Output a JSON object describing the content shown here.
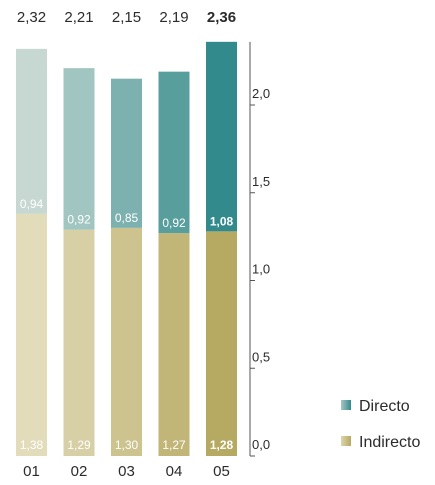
{
  "chart_data": {
    "type": "bar",
    "stacked": true,
    "categories": [
      "01",
      "02",
      "03",
      "04",
      "05"
    ],
    "series": [
      {
        "name": "Indirecto",
        "values": [
          1.38,
          1.29,
          1.3,
          1.27,
          1.28
        ],
        "labels": [
          "1,38",
          "1,29",
          "1,30",
          "1,27",
          "1,28"
        ]
      },
      {
        "name": "Directo",
        "values": [
          0.94,
          0.92,
          0.85,
          0.92,
          1.08
        ],
        "labels": [
          "0,94",
          "0,92",
          "0,85",
          "0,92",
          "1,08"
        ]
      }
    ],
    "totals": [
      2.32,
      2.21,
      2.15,
      2.19,
      2.36
    ],
    "total_labels": [
      "2,32",
      "2,21",
      "2,15",
      "2,19",
      "2,36"
    ],
    "highlight_index": 4,
    "ylim": [
      0,
      2.36
    ],
    "yticks": [
      0.0,
      0.5,
      1.0,
      1.5,
      2.0
    ],
    "ytick_labels": [
      "0,0",
      "0,5",
      "1,0",
      "1,5",
      "2,0"
    ],
    "y_axis_position": "right",
    "grid": false,
    "legend_position": "bottom-right",
    "title": "",
    "xlabel": "",
    "ylabel": "",
    "colors": {
      "indirecto_light": "#e2dcbb",
      "indirecto_dark": "#b6a962",
      "directo_light": "#c6d8d1",
      "directo_dark": "#338a8c",
      "label_text": "#ffffff",
      "axis_text": "#2b2b2b"
    }
  }
}
